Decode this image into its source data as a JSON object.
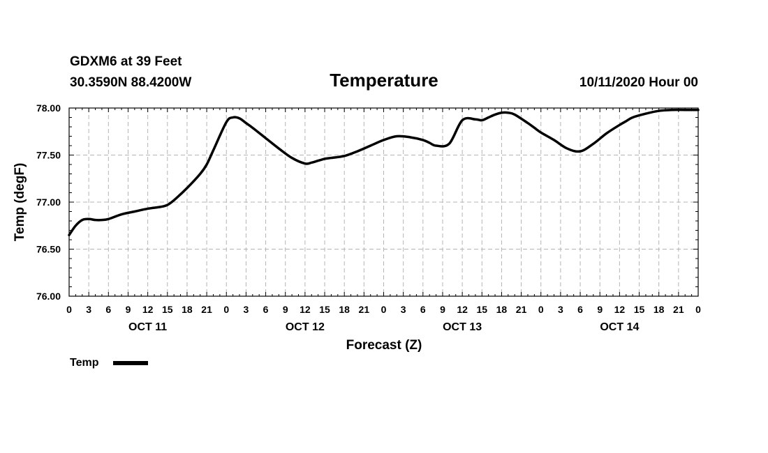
{
  "header": {
    "station": "GDXM6 at 39 Feet",
    "location": "30.3590N 88.4200W",
    "title": "Temperature",
    "issued": "10/11/2020 Hour 00"
  },
  "chart_data": {
    "type": "line",
    "title": "Temperature",
    "xlabel": "Forecast (Z)",
    "ylabel": "Temp (degF)",
    "ylim": [
      76.0,
      78.0
    ],
    "xlim_hours": [
      0,
      96
    ],
    "grid": true,
    "y_ticks": [
      "78.00",
      "77.50",
      "77.00",
      "76.50",
      "76.00"
    ],
    "y_tick_values": [
      78.0,
      77.5,
      77.0,
      76.5,
      76.0
    ],
    "x_ticks": [
      "0",
      "3",
      "6",
      "9",
      "12",
      "15",
      "18",
      "21",
      "0",
      "3",
      "6",
      "9",
      "12",
      "15",
      "18",
      "21",
      "0",
      "3",
      "6",
      "9",
      "12",
      "15",
      "18",
      "21",
      "0",
      "3",
      "6",
      "9",
      "12",
      "15",
      "18",
      "21",
      "0"
    ],
    "day_labels": [
      "OCT 11",
      "OCT 12",
      "OCT 13",
      "OCT 14"
    ],
    "day_label_hours": [
      12,
      36,
      60,
      84
    ],
    "legend_position": "bottom-left",
    "series": [
      {
        "name": "Temp",
        "color": "#000000",
        "x_hours": [
          0,
          1,
          2,
          3,
          4,
          5,
          6,
          8,
          10,
          12,
          14,
          15,
          16,
          18,
          20,
          21,
          22,
          24,
          25,
          26,
          27,
          28,
          30,
          32,
          34,
          36,
          37,
          38,
          39,
          40,
          42,
          44,
          46,
          48,
          50,
          52,
          54,
          55,
          56,
          58,
          60,
          62,
          63,
          64,
          65,
          66,
          67,
          68,
          70,
          71,
          72,
          74,
          76,
          78,
          80,
          82,
          84,
          85,
          86,
          88,
          90,
          92,
          94,
          96
        ],
        "values": [
          76.65,
          76.75,
          76.81,
          76.82,
          76.81,
          76.81,
          76.82,
          76.87,
          76.9,
          76.93,
          76.95,
          76.97,
          77.02,
          77.15,
          77.3,
          77.4,
          77.55,
          77.85,
          77.9,
          77.89,
          77.84,
          77.79,
          77.68,
          77.57,
          77.47,
          77.41,
          77.42,
          77.44,
          77.46,
          77.47,
          77.49,
          77.54,
          77.6,
          77.66,
          77.7,
          77.69,
          77.66,
          77.63,
          77.6,
          77.62,
          77.87,
          77.88,
          77.87,
          77.9,
          77.93,
          77.95,
          77.95,
          77.93,
          77.84,
          77.79,
          77.74,
          77.66,
          77.57,
          77.54,
          77.62,
          77.73,
          77.82,
          77.86,
          77.9,
          77.94,
          77.97,
          77.98,
          77.98,
          77.98
        ]
      }
    ]
  }
}
